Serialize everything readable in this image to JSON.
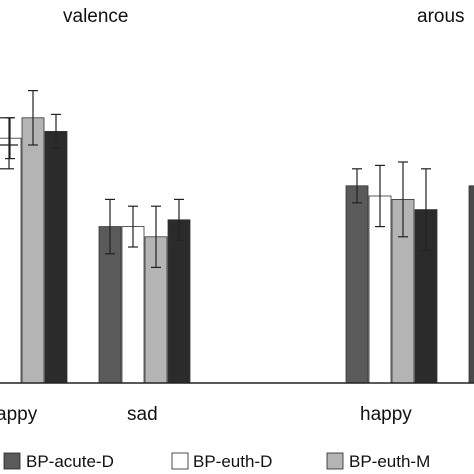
{
  "chart_data": [
    {
      "type": "bar",
      "title": "valence",
      "categories": [
        "appy",
        "sad"
      ],
      "series": [
        {
          "name": "BP-acute-D",
          "color": "#5a5a5a",
          "values": [
            null,
            0.46
          ],
          "errors": [
            null,
            0.08
          ]
        },
        {
          "name": "BP-euth-D",
          "color": "#ffffff",
          "values": [
            0.72,
            0.46
          ],
          "errors": [
            0.06,
            0.06
          ]
        },
        {
          "name": "BP-euth-M",
          "color": "#b4b4b4",
          "values": [
            0.78,
            0.43
          ],
          "errors": [
            0.08,
            0.09
          ]
        },
        {
          "name": "",
          "color": "#2b2b2b",
          "values": [
            0.74,
            0.48
          ],
          "errors": [
            0.05,
            0.06
          ]
        }
      ],
      "ylim": [
        0,
        1
      ]
    },
    {
      "type": "bar",
      "title": "arous",
      "categories": [
        "happy"
      ],
      "series": [
        {
          "name": "BP-acute-D",
          "color": "#5a5a5a",
          "values": [
            0.58
          ],
          "errors": [
            0.05
          ]
        },
        {
          "name": "BP-euth-D",
          "color": "#ffffff",
          "values": [
            0.55
          ],
          "errors": [
            0.09
          ]
        },
        {
          "name": "BP-euth-M",
          "color": "#b4b4b4",
          "values": [
            0.54
          ],
          "errors": [
            0.11
          ]
        },
        {
          "name": "",
          "color": "#2b2b2b",
          "values": [
            0.51
          ],
          "errors": [
            0.12
          ]
        }
      ],
      "extra_bar": {
        "color": "#4a4a4a",
        "value": 0.58
      },
      "ylim": [
        0,
        1
      ]
    }
  ],
  "legend": [
    {
      "label": "BP-acute-D",
      "color": "#5a5a5a"
    },
    {
      "label": "BP-euth-D",
      "color": "#ffffff"
    },
    {
      "label": "BP-euth-M",
      "color": "#b4b4b4"
    }
  ]
}
